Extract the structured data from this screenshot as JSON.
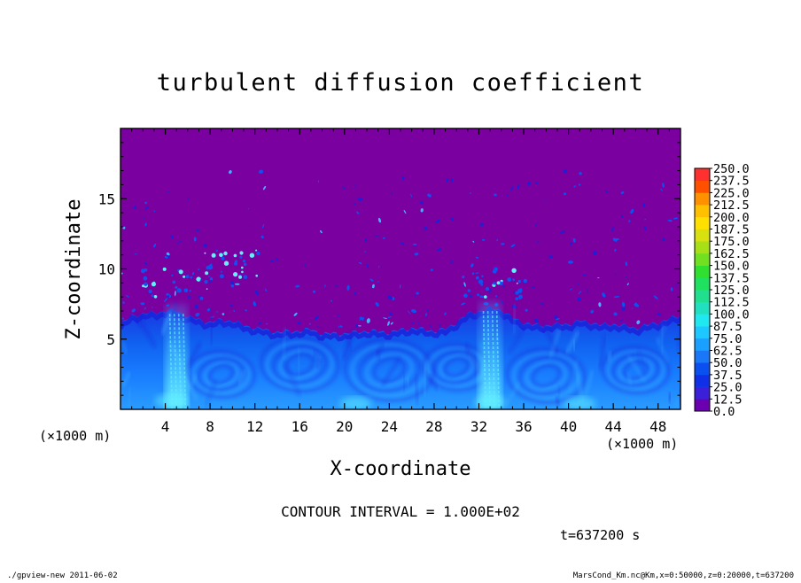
{
  "chart_data": {
    "type": "heatmap",
    "title": "turbulent diffusion coefficient",
    "xlabel": "X-coordinate",
    "ylabel": "Z-coordinate",
    "x_unit_label": "(×1000 m)",
    "y_unit_label": "(×1000 m)",
    "xlim": [
      0,
      50
    ],
    "ylim": [
      0,
      20
    ],
    "x_ticks": [
      4,
      8,
      12,
      16,
      20,
      24,
      28,
      32,
      36,
      40,
      44,
      48
    ],
    "y_ticks": [
      5,
      10,
      15
    ],
    "background_value": 0.0,
    "boundary_layer_top_km": [
      [
        0,
        6.0
      ],
      [
        1,
        6.7
      ],
      [
        2,
        6.8
      ],
      [
        4,
        7.0
      ],
      [
        5,
        7.0
      ],
      [
        6,
        6.6
      ],
      [
        8,
        6.2
      ],
      [
        9,
        6.4
      ],
      [
        10,
        6.3
      ],
      [
        11,
        6.0
      ],
      [
        12,
        5.8
      ],
      [
        14,
        5.5
      ],
      [
        16,
        5.6
      ],
      [
        17,
        5.7
      ],
      [
        18,
        5.4
      ],
      [
        20,
        5.4
      ],
      [
        22,
        5.6
      ],
      [
        24,
        5.5
      ],
      [
        26,
        5.8
      ],
      [
        28,
        5.6
      ],
      [
        29,
        5.7
      ],
      [
        30,
        6.2
      ],
      [
        31,
        6.8
      ],
      [
        32,
        7.0
      ],
      [
        33,
        7.2
      ],
      [
        34,
        7.1
      ],
      [
        35,
        6.5
      ],
      [
        36,
        6.2
      ],
      [
        37,
        6.0
      ],
      [
        38,
        6.0
      ],
      [
        40,
        6.1
      ],
      [
        41,
        6.3
      ],
      [
        42,
        6.2
      ],
      [
        43,
        6.0
      ],
      [
        44,
        6.1
      ],
      [
        46,
        5.8
      ],
      [
        48,
        6.2
      ],
      [
        50,
        6.7
      ]
    ],
    "high_value_columns_km": [
      5,
      33
    ],
    "colorbar": {
      "levels": [
        "0.0",
        "12.5",
        "25.0",
        "37.5",
        "50.0",
        "62.5",
        "75.0",
        "87.5",
        "100.0",
        "112.5",
        "125.0",
        "137.5",
        "150.0",
        "162.5",
        "175.0",
        "187.5",
        "200.0",
        "212.5",
        "225.0",
        "237.5",
        "250.0"
      ],
      "colors": [
        "#6b00b0",
        "#3a20d8",
        "#1030e8",
        "#0a50f0",
        "#1a78f8",
        "#1aa0ff",
        "#1cc8ff",
        "#20e8f0",
        "#20e0c0",
        "#20e090",
        "#20e060",
        "#30e030",
        "#70e020",
        "#a8e018",
        "#d8e010",
        "#ffe000",
        "#ffc000",
        "#ff9000",
        "#ff5000",
        "#ff3030",
        "#ff8080"
      ]
    },
    "contour_interval_label": "CONTOUR INTERVAL = 1.000E+02",
    "time_label": "t=637200 s"
  },
  "footer": {
    "left": "./gpview-new  2011-06-02",
    "right": "MarsCond_Km.nc@Km,x=0:50000,z=0:20000,t=637200"
  },
  "colors": {
    "background_purple": "#7a00a0",
    "bl_dark": "#1a20d8",
    "bl_mid": "#1050f0",
    "bl_light": "#40b0ff",
    "bl_cyan": "#60f0ff"
  }
}
